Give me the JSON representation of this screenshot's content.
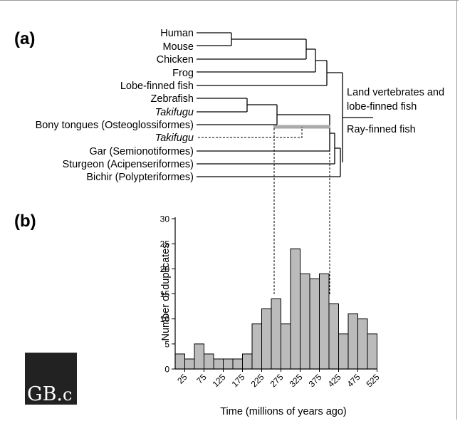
{
  "panel_a": {
    "label": "(a)",
    "taxa": [
      {
        "name": "Human",
        "italic": false
      },
      {
        "name": "Mouse",
        "italic": false
      },
      {
        "name": "Chicken",
        "italic": false
      },
      {
        "name": "Frog",
        "italic": false
      },
      {
        "name": "Lobe-finned fish",
        "italic": false
      },
      {
        "name": "Zebrafish",
        "italic": false
      },
      {
        "name": "Takifugu",
        "italic": true
      },
      {
        "name": "Bony tongues (Osteoglossiformes)",
        "italic": false
      },
      {
        "name": "Takifugu",
        "italic": true
      },
      {
        "name": "Gar (Semionotiformes)",
        "italic": false
      },
      {
        "name": "Sturgeon (Acipenseriformes)",
        "italic": false
      },
      {
        "name": "Bichir (Polypteriformes)",
        "italic": false
      }
    ],
    "clade_labels": {
      "land_line1": "Land vertebrates and",
      "land_line2": "lobe-finned fish",
      "ray": "Ray-finned fish"
    },
    "colors": {
      "duplication_bar": "#aaaaaa"
    }
  },
  "panel_b": {
    "label": "(b)"
  },
  "chart_data": {
    "type": "bar",
    "title": "",
    "xlabel": "Time (millions of years ago)",
    "ylabel": "Number of duplicates",
    "ylim": [
      0,
      30
    ],
    "yticks": [
      0,
      5,
      10,
      15,
      20,
      25,
      30
    ],
    "xtick_labels": [
      "25",
      "75",
      "125",
      "175",
      "225",
      "275",
      "325",
      "375",
      "425",
      "475",
      "525"
    ],
    "bin_width": 25,
    "bins_start": [
      0,
      25,
      50,
      75,
      100,
      125,
      150,
      175,
      200,
      225,
      250,
      275,
      300,
      325,
      350,
      375,
      400,
      425,
      450,
      475,
      500
    ],
    "values": [
      3,
      2,
      5,
      3,
      2,
      2,
      2,
      3,
      9,
      12,
      14,
      9,
      24,
      19,
      18,
      19,
      13,
      7,
      11,
      10,
      7
    ],
    "bar_color": "#bbbbbb",
    "grid": false
  },
  "logo": {
    "text_main": "GB",
    "text_dot": ".",
    "text_tail": "c",
    "background": "#222222"
  }
}
